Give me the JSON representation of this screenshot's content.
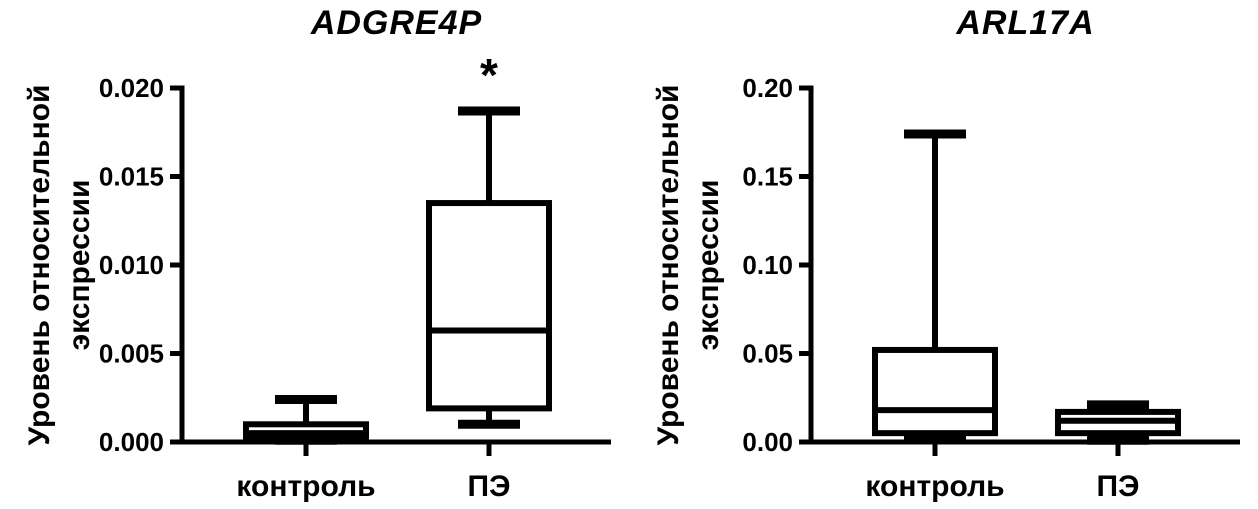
{
  "figure": {
    "background_color": "#ffffff",
    "ink_color": "#000000"
  },
  "chart_data": [
    {
      "type": "box",
      "title": "ADGRE4P",
      "ylabel_lines": [
        "Уровень относительной",
        "экспрессии"
      ],
      "xlabel": "",
      "categories": [
        "контроль",
        "ПЭ"
      ],
      "ylim": [
        0,
        0.02
      ],
      "yticks": [
        0,
        0.005,
        0.01,
        0.015,
        0.02
      ],
      "ytick_labels": [
        "0.000",
        "0.005",
        "0.010",
        "0.015",
        "0.020"
      ],
      "grid": false,
      "legend": "none",
      "boxes": [
        {
          "category": "контроль",
          "min": 0.0001,
          "q1": 0.0002,
          "median": 0.0005,
          "q3": 0.001,
          "max": 0.0024,
          "annotation": ""
        },
        {
          "category": "ПЭ",
          "min": 0.001,
          "q1": 0.0019,
          "median": 0.0063,
          "q3": 0.0135,
          "max": 0.0187,
          "annotation": "*"
        }
      ]
    },
    {
      "type": "box",
      "title": "ARL17A",
      "ylabel_lines": [
        "Уровень относительной",
        "экспрессии"
      ],
      "xlabel": "",
      "categories": [
        "контроль",
        "ПЭ"
      ],
      "ylim": [
        0,
        0.2
      ],
      "yticks": [
        0,
        0.05,
        0.1,
        0.15,
        0.2
      ],
      "ytick_labels": [
        "0.00",
        "0.05",
        "0.10",
        "0.15",
        "0.20"
      ],
      "grid": false,
      "legend": "none",
      "boxes": [
        {
          "category": "контроль",
          "min": 0.002,
          "q1": 0.005,
          "median": 0.018,
          "q3": 0.052,
          "max": 0.174,
          "annotation": ""
        },
        {
          "category": "ПЭ",
          "min": 0.001,
          "q1": 0.005,
          "median": 0.012,
          "q3": 0.017,
          "max": 0.021,
          "annotation": ""
        }
      ]
    }
  ]
}
